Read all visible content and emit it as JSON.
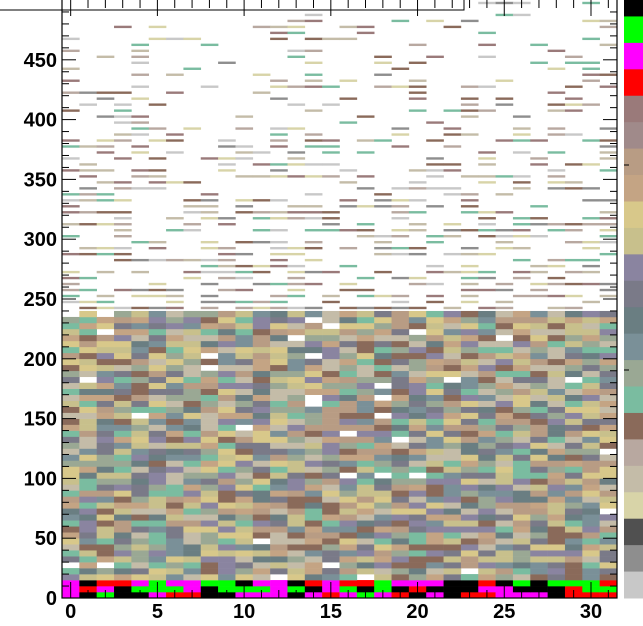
{
  "chart_data": {
    "type": "heatmap",
    "title": "",
    "xlabel": "",
    "ylabel": "",
    "xlim": [
      -0.5,
      31.5
    ],
    "ylim": [
      0,
      500
    ],
    "x_ticks": [
      0,
      5,
      10,
      15,
      20,
      25,
      30
    ],
    "x_tick_labels": [
      "0",
      "5",
      "10",
      "15",
      "20",
      "25",
      "30"
    ],
    "y_ticks": [
      0,
      50,
      100,
      150,
      200,
      250,
      300,
      350,
      400,
      450
    ],
    "y_tick_labels": [
      "0",
      "50",
      "100",
      "150",
      "200",
      "250",
      "300",
      "350",
      "400",
      "450"
    ],
    "grid": false,
    "colorbar": {
      "position": "right",
      "colors_top_to_bottom": [
        "#000000",
        "#00ff00",
        "#ff00ff",
        "#ff0000",
        "#9a7a7a",
        "#a08a8a",
        "#b89c84",
        "#c4a484",
        "#d8c88a",
        "#c8c08c",
        "#8a84a0",
        "#7a7a88",
        "#6a7e82",
        "#7a9098",
        "#9aa894",
        "#7abca0",
        "#8a6a5a",
        "#b8a8a0",
        "#c4bca8",
        "#d8d4a8",
        "#505050",
        "#8e8e8e",
        "#c8c8c8"
      ]
    },
    "cell_rows": {
      "y_bin_size": 5,
      "dense_band": [
        0,
        15
      ],
      "dense_band_colors": [
        "#ff0000",
        "#ff00ff",
        "#00ff00",
        "#000000"
      ],
      "main_body": [
        15,
        240
      ],
      "main_body_colors": [
        "#8a84a0",
        "#7a7a88",
        "#6a7e82",
        "#7a9098",
        "#d8c88a",
        "#c8c08c",
        "#b89c84",
        "#c4a484",
        "#7abca0",
        "#9aa894",
        "#8a6a5a",
        "#c4bca8"
      ],
      "sparse_region": [
        240,
        500
      ],
      "sparse_region_colors": [
        "#8e8e8e",
        "#c4bca8",
        "#b8a8a0",
        "#9a7a7a",
        "#7abca0",
        "#c8c8c8",
        "#8a6a5a",
        "#d8d4a8"
      ]
    }
  }
}
